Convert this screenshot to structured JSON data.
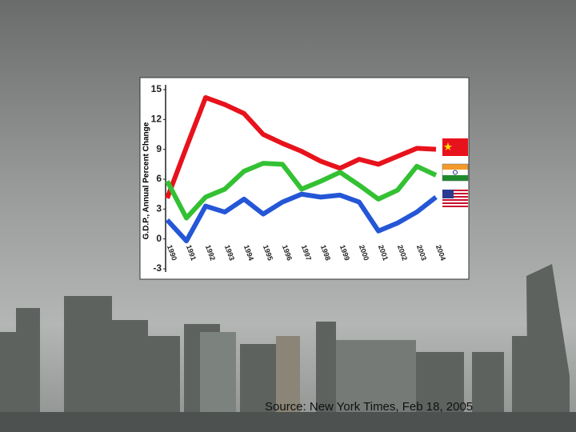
{
  "chart_data": {
    "type": "line",
    "y_label": "G.D.P., Annual Percent Change",
    "source": "Source: New York Times, Feb 18, 2005",
    "x": [
      1990,
      1991,
      1992,
      1993,
      1994,
      1995,
      1996,
      1997,
      1998,
      1999,
      2000,
      2001,
      2002,
      2003,
      2004
    ],
    "xlim": [
      1990,
      2004
    ],
    "ylim": [
      -3,
      15
    ],
    "yticks": [
      -3,
      0,
      3,
      6,
      9,
      12,
      15
    ],
    "grid": false,
    "series": [
      {
        "color": "#e8121c",
        "values": [
          4.1,
          9.2,
          14.2,
          13.5,
          12.6,
          10.5,
          9.6,
          8.8,
          7.8,
          7.1,
          8.0,
          7.5,
          8.3,
          9.1,
          9.0
        ]
      },
      {
        "color": "#33c133",
        "values": [
          5.8,
          2.1,
          4.2,
          5.0,
          6.8,
          7.6,
          7.5,
          5.0,
          5.8,
          6.7,
          5.4,
          4.0,
          4.9,
          7.3,
          6.4
        ]
      },
      {
        "color": "#2456d6",
        "values": [
          1.9,
          -0.2,
          3.3,
          2.7,
          4.0,
          2.5,
          3.7,
          4.5,
          4.2,
          4.4,
          3.7,
          0.8,
          1.6,
          2.7,
          4.2
        ]
      }
    ]
  }
}
